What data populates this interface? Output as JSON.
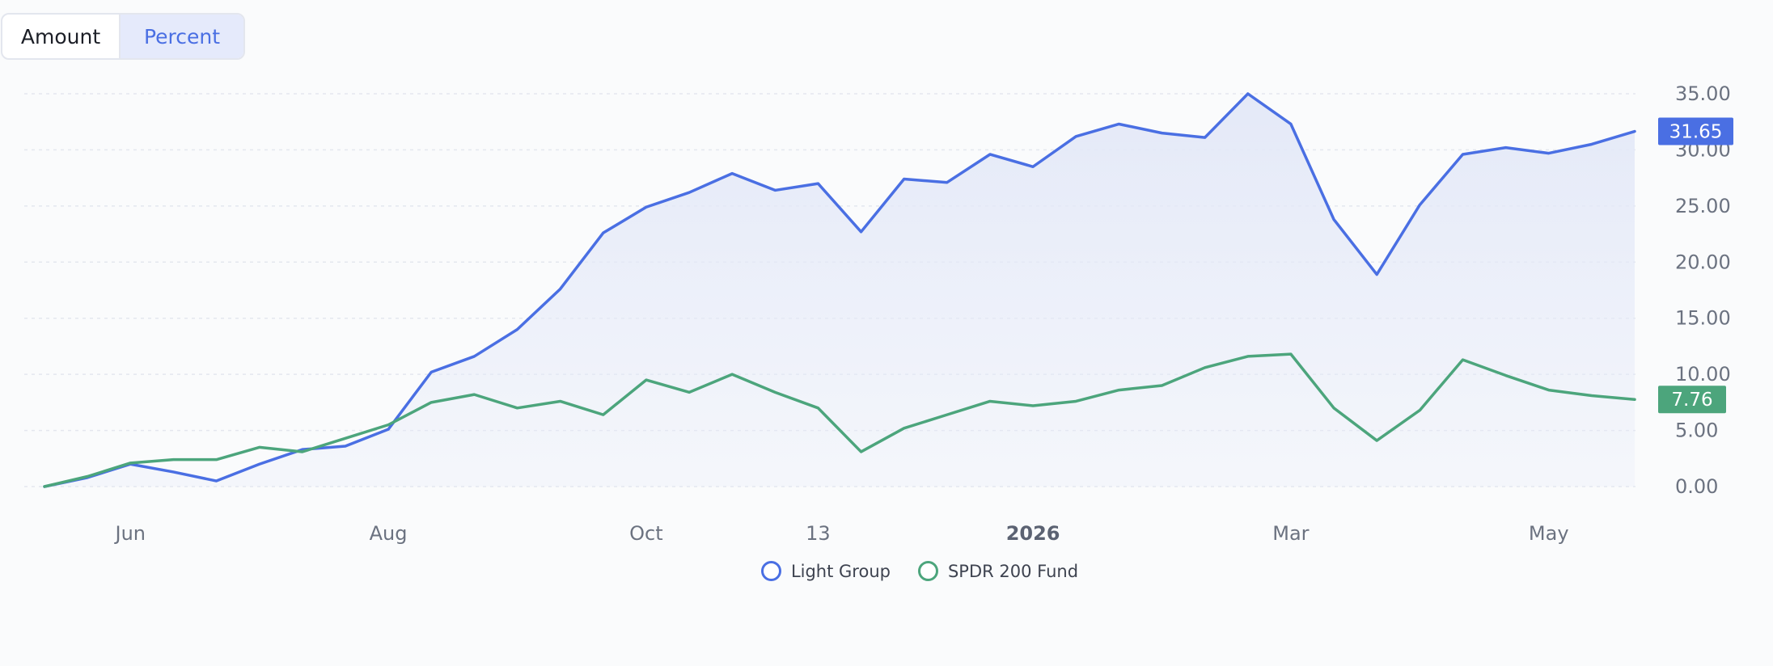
{
  "toggle": {
    "amount_label": "Amount",
    "percent_label": "Percent",
    "selected": "Percent"
  },
  "colors": {
    "series1": "#4a6fe3",
    "series2": "#4ca57c",
    "grid": "#e4e7ee",
    "axis_text": "#6b7280",
    "fill": "#e4e9f8"
  },
  "chart_data": {
    "type": "line",
    "title": "",
    "xlabel": "",
    "ylabel": "",
    "x_tick_labels": [
      "Jun",
      "Aug",
      "Oct",
      "13",
      "2026",
      "Mar",
      "May"
    ],
    "x_tick_indices": [
      2,
      8,
      14,
      18,
      23,
      29,
      35
    ],
    "y_ticks": [
      "0.00",
      "5.00",
      "10.00",
      "15.00",
      "20.00",
      "25.00",
      "30.00",
      "35.00"
    ],
    "ylim": [
      0,
      35
    ],
    "grid": true,
    "legend_position": "bottom-center",
    "series": [
      {
        "name": "Light Group",
        "values": [
          0.0,
          0.8,
          2.0,
          1.3,
          0.5,
          2.0,
          3.3,
          3.6,
          5.1,
          10.2,
          11.6,
          14.0,
          17.6,
          22.6,
          24.9,
          26.2,
          27.9,
          26.4,
          27.0,
          22.7,
          27.4,
          27.1,
          29.6,
          28.5,
          31.2,
          32.3,
          31.5,
          31.1,
          35.0,
          32.3,
          23.8,
          18.9,
          25.1,
          29.6,
          30.2,
          29.7,
          30.5,
          31.65
        ],
        "last_value_label": "31.65"
      },
      {
        "name": "SPDR 200 Fund",
        "values": [
          0.0,
          0.9,
          2.1,
          2.4,
          2.4,
          3.5,
          3.1,
          4.3,
          5.5,
          7.5,
          8.2,
          7.0,
          7.6,
          6.4,
          9.5,
          8.4,
          10.0,
          8.4,
          7.0,
          3.1,
          5.2,
          6.4,
          7.6,
          7.2,
          7.6,
          8.6,
          9.0,
          10.6,
          11.6,
          11.8,
          7.0,
          4.1,
          6.8,
          11.3,
          9.9,
          8.6,
          8.1,
          7.76
        ],
        "last_value_label": "7.76"
      }
    ]
  }
}
